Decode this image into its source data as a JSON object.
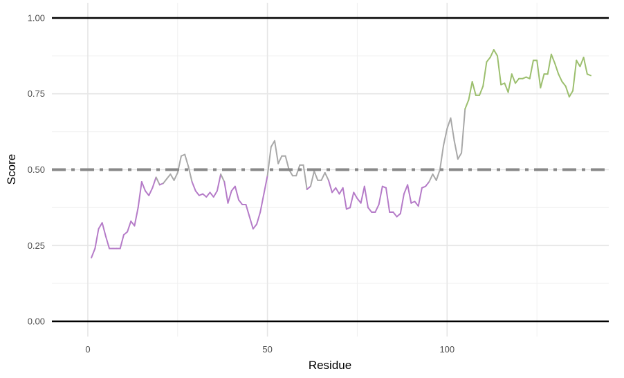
{
  "chart_data": {
    "type": "line",
    "title": "",
    "xlabel": "Residue",
    "ylabel": "Score",
    "xlim": [
      -10,
      145
    ],
    "ylim": [
      -0.05,
      1.05
    ],
    "x_ticks": [
      0,
      50,
      100
    ],
    "x_tick_labels": [
      "0",
      "50",
      "100"
    ],
    "y_ticks": [
      0.0,
      0.25,
      0.5,
      0.75,
      1.0
    ],
    "y_tick_labels": [
      "0.00",
      "0.25",
      "0.50",
      "0.75",
      "1.00"
    ],
    "grid": true,
    "legend": "none",
    "reference_lines": [
      {
        "y": 0.0,
        "style": "solid",
        "color": "#000000"
      },
      {
        "y": 1.0,
        "style": "solid",
        "color": "#000000"
      },
      {
        "y": 0.5,
        "style": "dashdot",
        "color": "#888888"
      }
    ],
    "colors": {
      "low": "#b57bc8",
      "mid": "#a8a8a8",
      "high": "#9cbf6e"
    },
    "color_thresholds": {
      "low_below": 0.4625,
      "high_above": 0.6575
    },
    "x": [
      1,
      2,
      3,
      4,
      5,
      6,
      7,
      8,
      9,
      10,
      11,
      12,
      13,
      14,
      15,
      16,
      17,
      18,
      19,
      20,
      21,
      22,
      23,
      24,
      25,
      26,
      27,
      28,
      29,
      30,
      31,
      32,
      33,
      34,
      35,
      36,
      37,
      38,
      39,
      40,
      41,
      42,
      43,
      44,
      45,
      46,
      47,
      48,
      49,
      50,
      51,
      52,
      53,
      54,
      55,
      56,
      57,
      58,
      59,
      60,
      61,
      62,
      63,
      64,
      65,
      66,
      67,
      68,
      69,
      70,
      71,
      72,
      73,
      74,
      75,
      76,
      77,
      78,
      79,
      80,
      81,
      82,
      83,
      84,
      85,
      86,
      87,
      88,
      89,
      90,
      91,
      92,
      93,
      94,
      95,
      96,
      97,
      98,
      99,
      100,
      101,
      102,
      103,
      104,
      105,
      106,
      107,
      108,
      109,
      110,
      111,
      112,
      113,
      114,
      115,
      116,
      117,
      118,
      119,
      120,
      121,
      122,
      123,
      124,
      125,
      126,
      127,
      128,
      129,
      130,
      131,
      132,
      133,
      134,
      135,
      136,
      137,
      138,
      139,
      140
    ],
    "y": [
      0.21,
      0.24,
      0.305,
      0.325,
      0.28,
      0.24,
      0.24,
      0.24,
      0.24,
      0.285,
      0.295,
      0.33,
      0.315,
      0.375,
      0.46,
      0.43,
      0.415,
      0.44,
      0.475,
      0.45,
      0.455,
      0.47,
      0.485,
      0.465,
      0.49,
      0.545,
      0.55,
      0.51,
      0.46,
      0.43,
      0.415,
      0.42,
      0.41,
      0.425,
      0.41,
      0.43,
      0.485,
      0.46,
      0.39,
      0.43,
      0.445,
      0.4,
      0.385,
      0.385,
      0.345,
      0.305,
      0.32,
      0.36,
      0.42,
      0.48,
      0.575,
      0.595,
      0.52,
      0.545,
      0.545,
      0.5,
      0.48,
      0.48,
      0.515,
      0.515,
      0.435,
      0.445,
      0.495,
      0.465,
      0.465,
      0.49,
      0.465,
      0.425,
      0.44,
      0.42,
      0.44,
      0.37,
      0.375,
      0.425,
      0.405,
      0.39,
      0.445,
      0.375,
      0.36,
      0.36,
      0.385,
      0.445,
      0.44,
      0.36,
      0.36,
      0.345,
      0.355,
      0.42,
      0.45,
      0.39,
      0.395,
      0.38,
      0.44,
      0.445,
      0.46,
      0.485,
      0.465,
      0.5,
      0.58,
      0.635,
      0.67,
      0.595,
      0.535,
      0.555,
      0.7,
      0.73,
      0.79,
      0.745,
      0.745,
      0.775,
      0.855,
      0.87,
      0.895,
      0.875,
      0.78,
      0.785,
      0.755,
      0.815,
      0.785,
      0.8,
      0.8,
      0.805,
      0.8,
      0.86,
      0.86,
      0.77,
      0.815,
      0.815,
      0.88,
      0.85,
      0.815,
      0.79,
      0.775,
      0.74,
      0.76,
      0.86,
      0.84,
      0.87,
      0.815,
      0.81
    ]
  }
}
